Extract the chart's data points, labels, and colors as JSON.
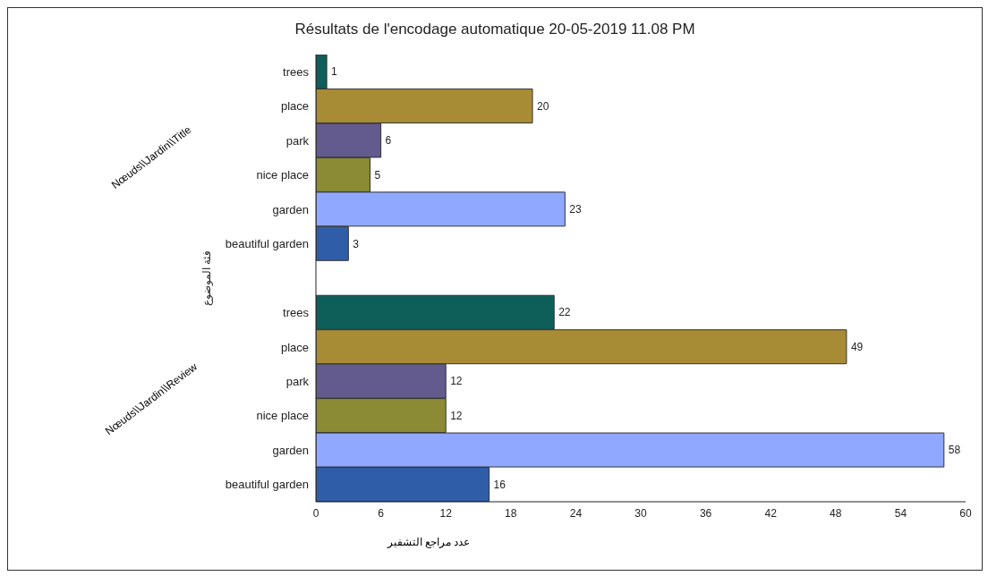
{
  "chart_data": {
    "type": "bar",
    "orientation": "horizontal",
    "title": "Résultats de l'encodage automatique 20-05-2019 11.08 PM",
    "xlabel": "عدد مراجع التشفير",
    "ylabel": "فئة الموضوع",
    "annotations": [
      "Nœuds\\\\Jardin\\\\Title",
      "Nœuds\\\\Jardin\\\\Review"
    ],
    "categories": [
      "trees",
      "place",
      "park",
      "nice place",
      "garden",
      "beautiful garden",
      null,
      "trees",
      "place",
      "park",
      "nice place",
      "garden",
      "beautiful garden"
    ],
    "values": [
      1,
      20,
      6,
      5,
      23,
      3,
      null,
      22,
      49,
      12,
      12,
      58,
      16
    ],
    "colors": [
      "#0e5e5a",
      "#a88c35",
      "#635a8e",
      "#8a8b34",
      "#90a8ff",
      "#2f5da8",
      "#ffffff",
      "#0e5e5a",
      "#a88c35",
      "#635a8e",
      "#8a8b34",
      "#90a8ff",
      "#2f5da8"
    ],
    "xlim": [
      0,
      60
    ],
    "xticks": [
      0,
      6,
      12,
      18,
      24,
      30,
      36,
      42,
      48,
      54,
      60
    ],
    "data_labels": true,
    "grid": false
  }
}
